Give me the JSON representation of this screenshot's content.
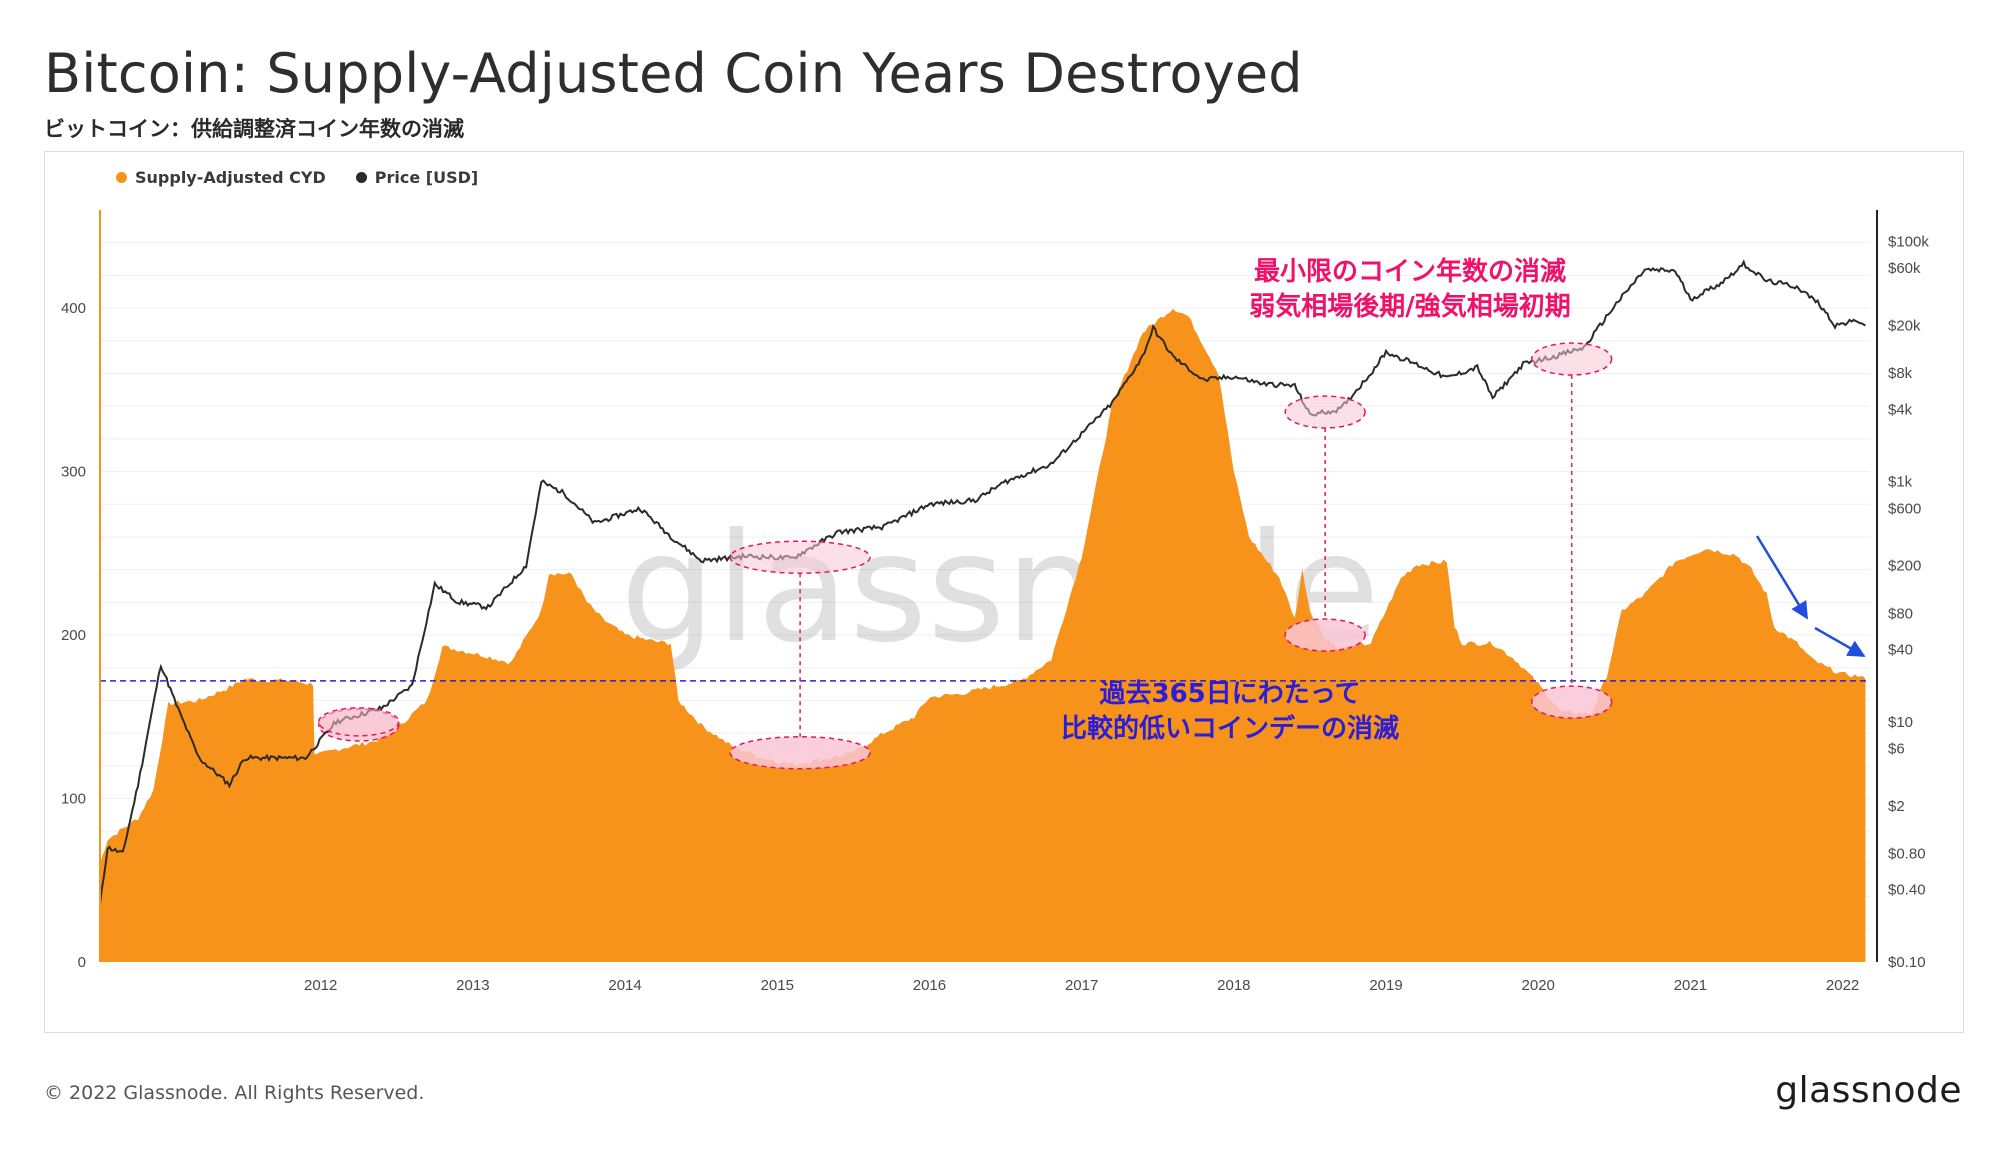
{
  "header": {
    "title": "Bitcoin: Supply-Adjusted Coin Years Destroyed",
    "subtitle": "ビットコイン：供給調整済コイン年数の消滅"
  },
  "legend": [
    {
      "label": "Supply-Adjusted CYD",
      "color": "#f7931a"
    },
    {
      "label": "Price [USD]",
      "color": "#2b2b2b"
    }
  ],
  "annotations": {
    "red": [
      "最小限のコイン年数の消滅",
      "弱気相場後期/強気相場初期"
    ],
    "blue": [
      "過去365日にわたって",
      "比較的低いコインデーの消滅"
    ]
  },
  "footer": {
    "copyright": "© 2022 Glassnode. All Rights Reserved.",
    "brand": "glassnode",
    "watermark": "glassnode"
  },
  "colors": {
    "cyd_fill": "#f7931a",
    "price_line": "#2b2b2b",
    "highlight_fill": "#f9c6d4",
    "highlight_stroke": "#e8175d",
    "threshold_line": "#2b1ed6",
    "arrow": "#1f4ee0"
  },
  "chart_data": {
    "type": "area",
    "x_ticks": [
      "2012",
      "2013",
      "2014",
      "2015",
      "2016",
      "2017",
      "2018",
      "2019",
      "2020",
      "2021",
      "2022"
    ],
    "y_left": {
      "ticks": [
        "0",
        "100",
        "200",
        "300",
        "400"
      ],
      "range": [
        0,
        460
      ]
    },
    "y_right": {
      "scale": "log",
      "ticks": [
        "$0.10",
        "$0.40",
        "$0.80",
        "$2",
        "$6",
        "$10",
        "$40",
        "$80",
        "$200",
        "$600",
        "$1k",
        "$4k",
        "$8k",
        "$20k",
        "$60k",
        "$100k"
      ],
      "range": [
        0.1,
        120000
      ]
    },
    "threshold_cyd": 172,
    "series": [
      {
        "name": "Supply-Adjusted CYD",
        "points": [
          [
            2011.05,
            60
          ],
          [
            2011.1,
            75
          ],
          [
            2011.3,
            88
          ],
          [
            2011.4,
            105
          ],
          [
            2011.5,
            158
          ],
          [
            2011.7,
            160
          ],
          [
            2011.9,
            168
          ],
          [
            2012.0,
            173
          ],
          [
            2012.3,
            172
          ],
          [
            2012.45,
            170
          ],
          [
            2012.46,
            126
          ],
          [
            2012.6,
            130
          ],
          [
            2012.85,
            135
          ],
          [
            2013.0,
            143
          ],
          [
            2013.2,
            160
          ],
          [
            2013.3,
            193
          ],
          [
            2013.55,
            188
          ],
          [
            2013.75,
            183
          ],
          [
            2013.95,
            215
          ],
          [
            2014.0,
            238
          ],
          [
            2014.15,
            237
          ],
          [
            2014.25,
            220
          ],
          [
            2014.35,
            210
          ],
          [
            2014.5,
            200
          ],
          [
            2014.7,
            196
          ],
          [
            2014.8,
            195
          ],
          [
            2014.85,
            160
          ],
          [
            2015.0,
            145
          ],
          [
            2015.2,
            132
          ],
          [
            2015.4,
            125
          ],
          [
            2015.6,
            121
          ],
          [
            2015.8,
            124
          ],
          [
            2016.0,
            128
          ],
          [
            2016.2,
            140
          ],
          [
            2016.4,
            150
          ],
          [
            2016.5,
            162
          ],
          [
            2016.7,
            164
          ],
          [
            2016.9,
            168
          ],
          [
            2017.1,
            172
          ],
          [
            2017.3,
            185
          ],
          [
            2017.5,
            248
          ],
          [
            2017.7,
            340
          ],
          [
            2017.9,
            385
          ],
          [
            2018.1,
            400
          ],
          [
            2018.2,
            395
          ],
          [
            2018.4,
            360
          ],
          [
            2018.5,
            300
          ],
          [
            2018.6,
            260
          ],
          [
            2018.8,
            235
          ],
          [
            2018.9,
            210
          ],
          [
            2018.95,
            240
          ],
          [
            2019.0,
            215
          ],
          [
            2019.1,
            198
          ],
          [
            2019.2,
            192
          ],
          [
            2019.4,
            195
          ],
          [
            2019.6,
            235
          ],
          [
            2019.7,
            243
          ],
          [
            2019.9,
            245
          ],
          [
            2019.95,
            205
          ],
          [
            2020.0,
            195
          ],
          [
            2020.2,
            195
          ],
          [
            2020.35,
            185
          ],
          [
            2020.5,
            170
          ],
          [
            2020.65,
            153
          ],
          [
            2020.85,
            152
          ],
          [
            2020.95,
            175
          ],
          [
            2021.05,
            215
          ],
          [
            2021.2,
            225
          ],
          [
            2021.4,
            245
          ],
          [
            2021.6,
            253
          ],
          [
            2021.8,
            249
          ],
          [
            2021.9,
            240
          ],
          [
            2022.0,
            225
          ],
          [
            2022.05,
            205
          ],
          [
            2022.2,
            195
          ],
          [
            2022.3,
            185
          ],
          [
            2022.4,
            180
          ],
          [
            2022.5,
            176
          ],
          [
            2022.6,
            175
          ],
          [
            2022.65,
            173
          ]
        ]
      },
      {
        "name": "Price [USD]",
        "points": [
          [
            2011.05,
            0.3
          ],
          [
            2011.1,
            0.9
          ],
          [
            2011.2,
            0.8
          ],
          [
            2011.3,
            3
          ],
          [
            2011.45,
            30
          ],
          [
            2011.55,
            14
          ],
          [
            2011.7,
            5
          ],
          [
            2011.9,
            3
          ],
          [
            2012.0,
            5
          ],
          [
            2012.2,
            5
          ],
          [
            2012.4,
            5
          ],
          [
            2012.6,
            10
          ],
          [
            2012.9,
            13
          ],
          [
            2013.1,
            20
          ],
          [
            2013.25,
            140
          ],
          [
            2013.4,
            100
          ],
          [
            2013.6,
            90
          ],
          [
            2013.85,
            200
          ],
          [
            2013.95,
            1000
          ],
          [
            2014.1,
            800
          ],
          [
            2014.3,
            450
          ],
          [
            2014.6,
            600
          ],
          [
            2014.8,
            350
          ],
          [
            2015.0,
            220
          ],
          [
            2015.3,
            240
          ],
          [
            2015.6,
            230
          ],
          [
            2015.9,
            380
          ],
          [
            2016.2,
            420
          ],
          [
            2016.5,
            650
          ],
          [
            2016.8,
            700
          ],
          [
            2017.0,
            1000
          ],
          [
            2017.3,
            1400
          ],
          [
            2017.5,
            2500
          ],
          [
            2017.7,
            4500
          ],
          [
            2017.9,
            11000
          ],
          [
            2017.97,
            19000
          ],
          [
            2018.1,
            11000
          ],
          [
            2018.3,
            7000
          ],
          [
            2018.5,
            7500
          ],
          [
            2018.7,
            6500
          ],
          [
            2018.9,
            6300
          ],
          [
            2019.0,
            3600
          ],
          [
            2019.2,
            4000
          ],
          [
            2019.4,
            8000
          ],
          [
            2019.5,
            12000
          ],
          [
            2019.7,
            9500
          ],
          [
            2019.9,
            7300
          ],
          [
            2020.1,
            9000
          ],
          [
            2020.2,
            5000
          ],
          [
            2020.4,
            9500
          ],
          [
            2020.6,
            11000
          ],
          [
            2020.8,
            13000
          ],
          [
            2021.0,
            29000
          ],
          [
            2021.2,
            58000
          ],
          [
            2021.4,
            57000
          ],
          [
            2021.5,
            33000
          ],
          [
            2021.7,
            45000
          ],
          [
            2021.85,
            65000
          ],
          [
            2022.0,
            47000
          ],
          [
            2022.2,
            42000
          ],
          [
            2022.35,
            30000
          ],
          [
            2022.45,
            20000
          ],
          [
            2022.6,
            22000
          ],
          [
            2022.65,
            20000
          ]
        ]
      }
    ]
  }
}
